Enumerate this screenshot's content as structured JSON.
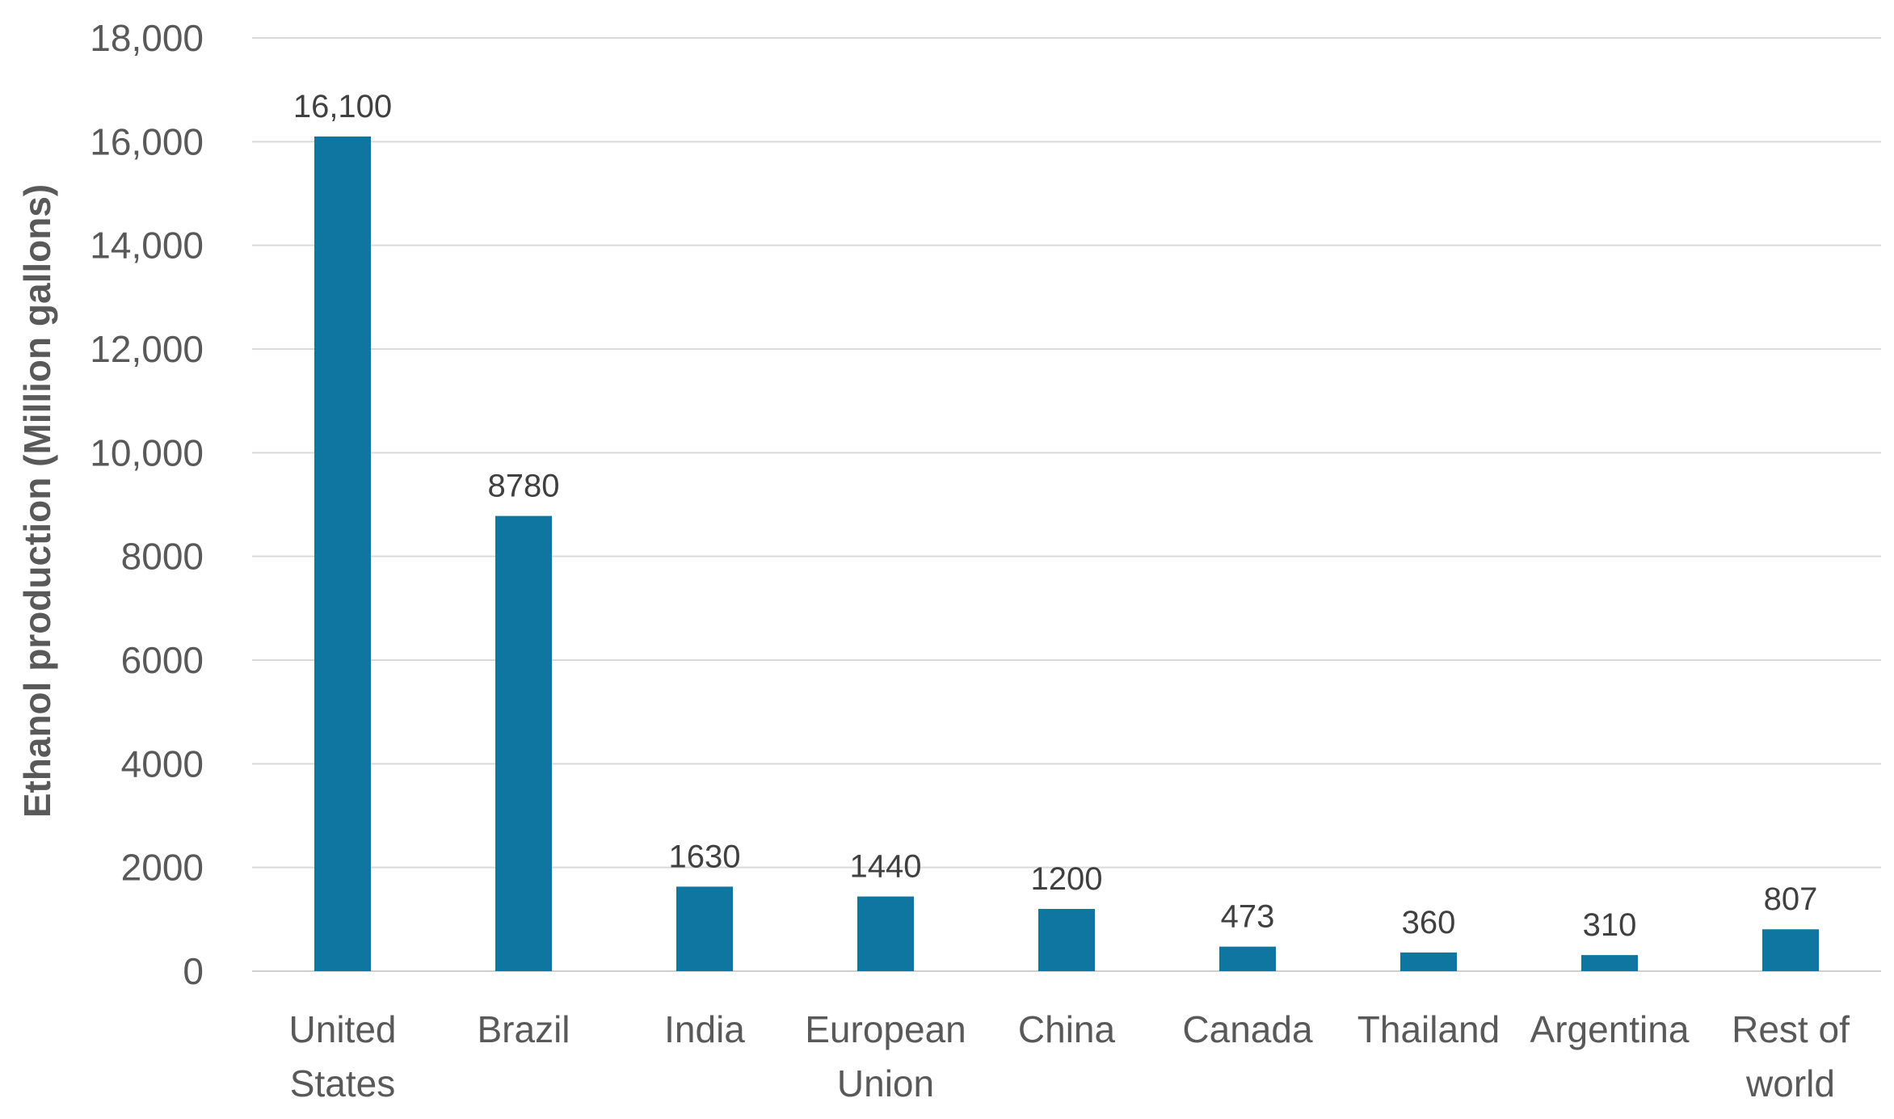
{
  "chart_data": {
    "type": "bar",
    "categories": [
      [
        "United",
        "States"
      ],
      [
        "Brazil"
      ],
      [
        "India"
      ],
      [
        "European",
        "Union"
      ],
      [
        "China"
      ],
      [
        "Canada"
      ],
      [
        "Thailand"
      ],
      [
        "Argentina"
      ],
      [
        "Rest of",
        "world"
      ]
    ],
    "values": [
      16100,
      8780,
      1630,
      1440,
      1200,
      473,
      360,
      310,
      807
    ],
    "data_labels": [
      "16,100",
      "8780",
      "1630",
      "1440",
      "1200",
      "473",
      "360",
      "310",
      "807"
    ],
    "ylabel": "Ethanol production (Million gallons)",
    "xlabel": "",
    "title": "",
    "ylim": [
      0,
      18000
    ],
    "yticks": [
      0,
      2000,
      4000,
      6000,
      8000,
      10000,
      12000,
      14000,
      16000,
      18000
    ],
    "ytick_labels": [
      "0",
      "2000",
      "4000",
      "6000",
      "8000",
      "10,000",
      "12,000",
      "14,000",
      "16,000",
      "18,000"
    ],
    "grid": true,
    "legend": "none",
    "bar_color": "#0e76a0"
  }
}
